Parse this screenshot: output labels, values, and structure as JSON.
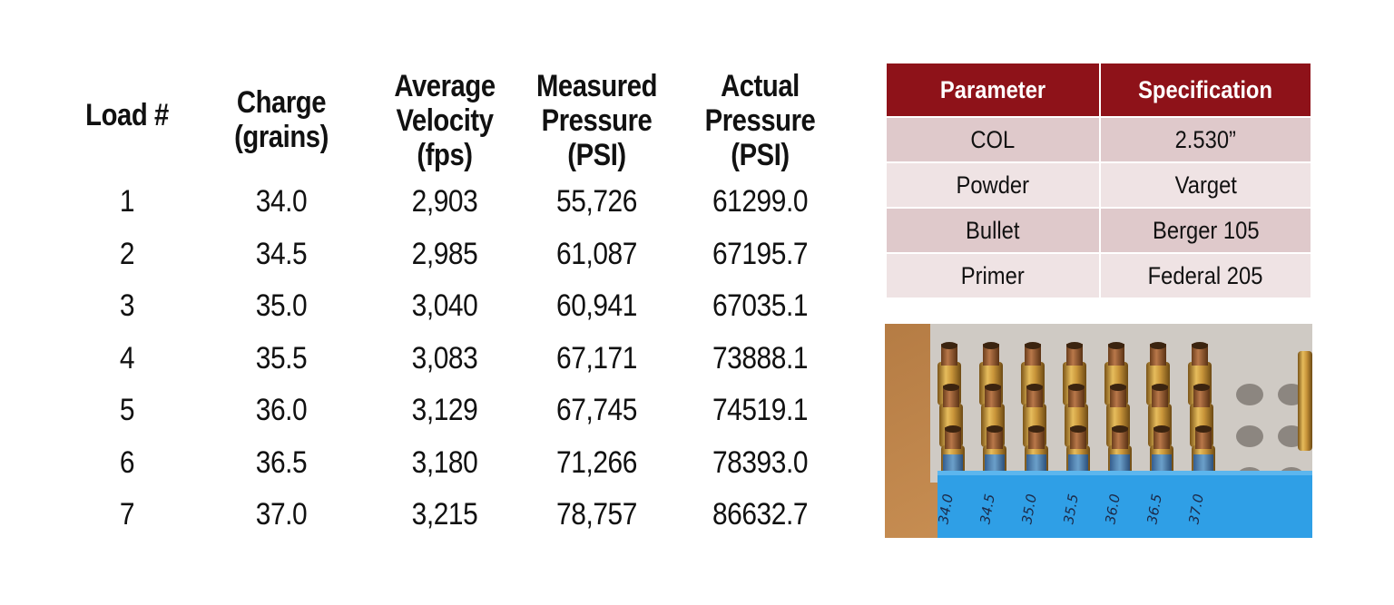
{
  "load_table": {
    "headers": [
      [
        "Load #"
      ],
      [
        "Charge",
        "(grains)"
      ],
      [
        "Average",
        "Velocity",
        "(fps)"
      ],
      [
        "Measured",
        "Pressure",
        "(PSI)"
      ],
      [
        "Actual",
        "Pressure",
        "(PSI)"
      ]
    ],
    "rows": [
      [
        "1",
        "34.0",
        "2,903",
        "55,726",
        "61299.0"
      ],
      [
        "2",
        "34.5",
        "2,985",
        "61,087",
        "67195.7"
      ],
      [
        "3",
        "35.0",
        "3,040",
        "60,941",
        "67035.1"
      ],
      [
        "4",
        "35.5",
        "3,083",
        "67,171",
        "73888.1"
      ],
      [
        "5",
        "36.0",
        "3,129",
        "67,745",
        "74519.1"
      ],
      [
        "6",
        "36.5",
        "3,180",
        "71,266",
        "78393.0"
      ],
      [
        "7",
        "37.0",
        "3,215",
        "78,757",
        "86632.7"
      ]
    ]
  },
  "spec_table": {
    "headers": [
      "Parameter",
      "Specification"
    ],
    "rows": [
      [
        "COL",
        "2.530”"
      ],
      [
        "Powder",
        "Varget"
      ],
      [
        "Bullet",
        "Berger 105"
      ],
      [
        "Primer",
        "Federal 205"
      ]
    ],
    "header_color": "#8e1219",
    "row_color_odd": "#dfc9cb",
    "row_color_even": "#efe3e4"
  },
  "photo": {
    "tape_labels": [
      "34.0",
      "34.5",
      "35.0",
      "35.5",
      "36.0",
      "36.5",
      "37.0"
    ],
    "tape_color": "#2f9fe6",
    "case_color": "#c9953a"
  }
}
